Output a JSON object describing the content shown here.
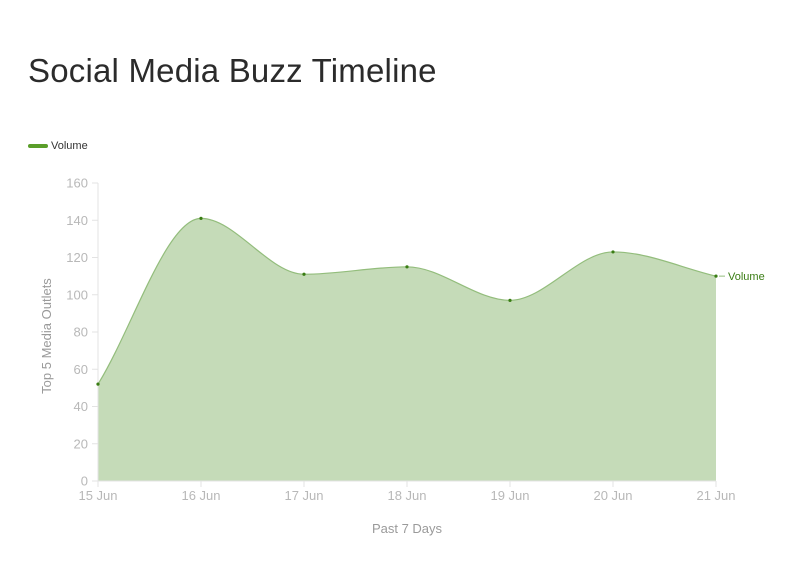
{
  "chart_data": {
    "type": "area",
    "title": "Social Media Buzz Timeline",
    "xlabel": "Past 7 Days",
    "ylabel": "Top 5 Media Outlets",
    "categories": [
      "15 Jun",
      "16 Jun",
      "17 Jun",
      "18 Jun",
      "19 Jun",
      "20 Jun",
      "21 Jun"
    ],
    "series": [
      {
        "name": "Volume",
        "values": [
          52,
          141,
          111,
          115,
          97,
          123,
          110
        ]
      }
    ],
    "ylim": [
      0,
      160
    ],
    "yticks": [
      0,
      20,
      40,
      60,
      80,
      100,
      120,
      140,
      160
    ],
    "legend_position": "top-left",
    "end_label": "Volume",
    "grid": false,
    "colors": {
      "line": "#5a9e2a",
      "fill": "#c5dbb8",
      "stroke": "#93bd7c",
      "point": "#3a7d14",
      "axis": "#e3e3e3"
    }
  }
}
